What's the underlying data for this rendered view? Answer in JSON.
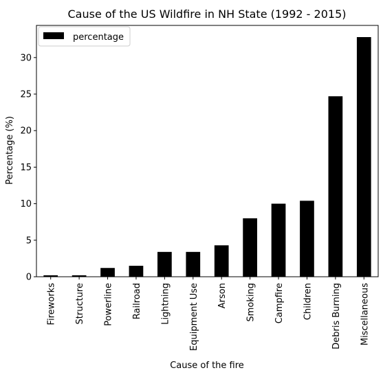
{
  "chart_data": {
    "type": "bar",
    "title": "Cause of the US Wildfire in NH State (1992 - 2015)",
    "xlabel": "Cause of the fire",
    "ylabel": "Percentage (%)",
    "categories": [
      "Fireworks",
      "Structure",
      "Powerline",
      "Railroad",
      "Lightning",
      "Equipment Use",
      "Arson",
      "Smoking",
      "Campfire",
      "Children",
      "Debris Burning",
      "Miscellaneous"
    ],
    "series": [
      {
        "name": "percentage",
        "values": [
          0.2,
          0.2,
          1.2,
          1.5,
          3.4,
          3.4,
          4.3,
          8.0,
          10.0,
          10.4,
          24.7,
          32.8
        ],
        "color": "#000000"
      }
    ],
    "ylim": [
      0,
      34.4
    ],
    "yticks": [
      0,
      5,
      10,
      15,
      20,
      25,
      30
    ],
    "grid": false,
    "legend_position": "top-left"
  }
}
